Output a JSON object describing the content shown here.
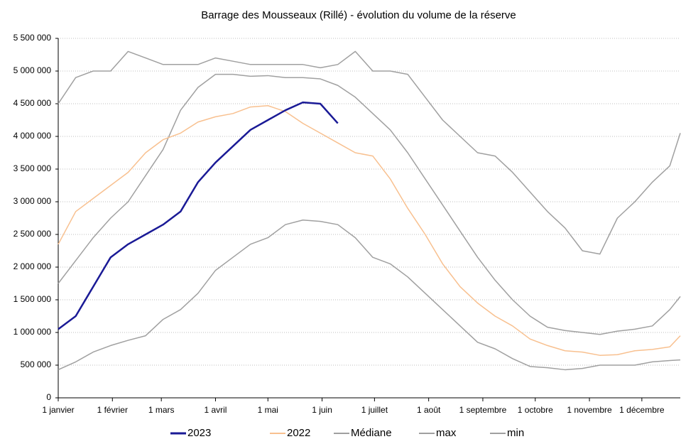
{
  "chart_data": {
    "type": "line",
    "title": "Barrage des Mousseaux (Rillé) - évolution du volume de la réserve",
    "x": [
      0,
      10,
      20,
      30,
      40,
      50,
      60,
      70,
      80,
      90,
      100,
      110,
      120,
      130,
      140,
      150,
      160,
      170,
      180,
      190,
      200,
      210,
      220,
      230,
      240,
      250,
      260,
      270,
      280,
      290,
      300,
      310,
      320,
      330,
      340,
      350,
      356
    ],
    "xlim": [
      0,
      356
    ],
    "xticks": [
      {
        "value": 0,
        "label": "1 janvier"
      },
      {
        "value": 31,
        "label": "1 février"
      },
      {
        "value": 59,
        "label": "1 mars"
      },
      {
        "value": 90,
        "label": "1 avril"
      },
      {
        "value": 120,
        "label": "1 mai"
      },
      {
        "value": 151,
        "label": "1 juin"
      },
      {
        "value": 181,
        "label": "1 juillet"
      },
      {
        "value": 212,
        "label": "1 août"
      },
      {
        "value": 243,
        "label": "1 septembre"
      },
      {
        "value": 273,
        "label": "1 octobre"
      },
      {
        "value": 304,
        "label": "1 novembre"
      },
      {
        "value": 334,
        "label": "1 décembre"
      }
    ],
    "ylim": [
      0,
      5500000
    ],
    "yticks": [
      {
        "value": 0,
        "label": "0"
      },
      {
        "value": 500000,
        "label": "500 000"
      },
      {
        "value": 1000000,
        "label": "1 000 000"
      },
      {
        "value": 1500000,
        "label": "1 500 000"
      },
      {
        "value": 2000000,
        "label": "2 000 000"
      },
      {
        "value": 2500000,
        "label": "2 500 000"
      },
      {
        "value": 3000000,
        "label": "3 000 000"
      },
      {
        "value": 3500000,
        "label": "3 500 000"
      },
      {
        "value": 4000000,
        "label": "4 000 000"
      },
      {
        "value": 4500000,
        "label": "4 500 000"
      },
      {
        "value": 5000000,
        "label": "5 000 000"
      },
      {
        "value": 5500000,
        "label": "5 500 000"
      }
    ],
    "grid": true,
    "legend": "bottom",
    "series": [
      {
        "name": "2023",
        "color": "#1a1a96",
        "width": 2.5,
        "values": [
          1050000,
          1250000,
          1700000,
          2150000,
          2350000,
          2500000,
          2650000,
          2850000,
          3300000,
          3600000,
          3850000,
          4100000,
          4250000,
          4400000,
          4520000,
          4500000,
          4200000,
          null,
          null,
          null,
          null,
          null,
          null,
          null,
          null,
          null,
          null,
          null,
          null,
          null,
          null,
          null,
          null,
          null,
          null,
          null,
          null
        ]
      },
      {
        "name": "2022",
        "color": "#f8c08f",
        "width": 1.5,
        "values": [
          2350000,
          2850000,
          3050000,
          3250000,
          3450000,
          3750000,
          3950000,
          4050000,
          4220000,
          4300000,
          4350000,
          4450000,
          4470000,
          4380000,
          4200000,
          4050000,
          3900000,
          3750000,
          3700000,
          3350000,
          2900000,
          2500000,
          2050000,
          1700000,
          1450000,
          1250000,
          1100000,
          900000,
          800000,
          720000,
          700000,
          650000,
          660000,
          720000,
          740000,
          780000,
          950000
        ]
      },
      {
        "name": "Médiane",
        "color": "#a0a0a0",
        "width": 1.5,
        "values": [
          1750000,
          2100000,
          2450000,
          2750000,
          3000000,
          3400000,
          3800000,
          4400000,
          4750000,
          4950000,
          4950000,
          4920000,
          4930000,
          4900000,
          4900000,
          4880000,
          4780000,
          4600000,
          4350000,
          4100000,
          3750000,
          3350000,
          2950000,
          2550000,
          2150000,
          1800000,
          1500000,
          1250000,
          1080000,
          1030000,
          1000000,
          970000,
          1020000,
          1050000,
          1100000,
          1350000,
          1550000
        ]
      },
      {
        "name": "max",
        "color": "#a0a0a0",
        "width": 1.5,
        "values": [
          4500000,
          4900000,
          5000000,
          5000000,
          5300000,
          5200000,
          5100000,
          5100000,
          5100000,
          5200000,
          5150000,
          5100000,
          5100000,
          5100000,
          5100000,
          5050000,
          5100000,
          5300000,
          5000000,
          5000000,
          4950000,
          4600000,
          4250000,
          4000000,
          3750000,
          3700000,
          3450000,
          3150000,
          2850000,
          2600000,
          2250000,
          2200000,
          2750000,
          3000000,
          3300000,
          3550000,
          4050000
        ]
      },
      {
        "name": "min",
        "color": "#a0a0a0",
        "width": 1.5,
        "values": [
          430000,
          550000,
          700000,
          800000,
          880000,
          950000,
          1200000,
          1350000,
          1600000,
          1950000,
          2150000,
          2350000,
          2450000,
          2650000,
          2720000,
          2700000,
          2650000,
          2450000,
          2150000,
          2050000,
          1850000,
          1600000,
          1350000,
          1100000,
          850000,
          750000,
          600000,
          480000,
          460000,
          430000,
          450000,
          500000,
          500000,
          500000,
          550000,
          570000,
          580000
        ]
      }
    ]
  }
}
